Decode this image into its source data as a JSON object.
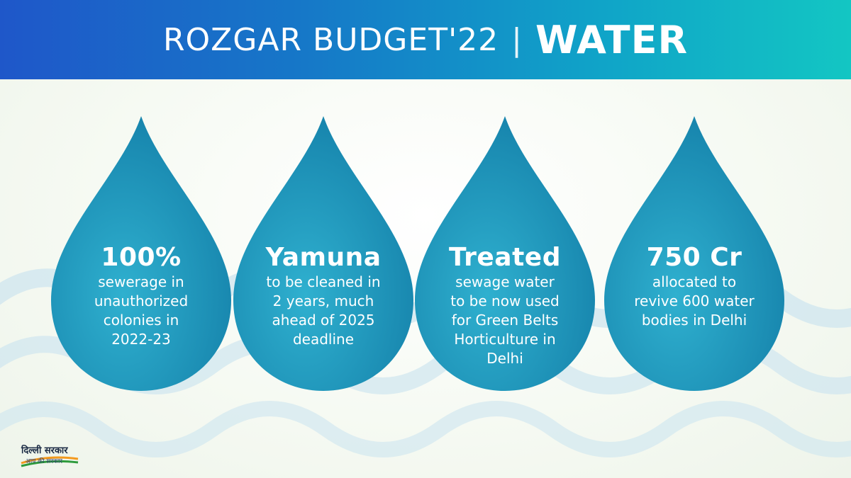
{
  "header": {
    "title_left": "ROZGAR BUDGET'22",
    "separator": "|",
    "title_right": "WATER",
    "gradient_start": "#1f57c9",
    "gradient_end": "#13c6c3"
  },
  "drops": [
    {
      "headline": "100%",
      "lines": [
        "sewerage in",
        "unauthorized",
        "colonies in",
        "2022-23"
      ]
    },
    {
      "headline": "Yamuna",
      "lines": [
        "to be cleaned in",
        "2 years, much",
        "ahead of 2025",
        "deadline"
      ]
    },
    {
      "headline": "Treated",
      "lines": [
        "sewage water",
        "to be now used",
        "for Green Belts",
        "Horticulture in",
        "Delhi"
      ]
    },
    {
      "headline": "750 Cr",
      "lines": [
        "allocated to",
        "revive 600 water",
        "bodies in Delhi"
      ]
    }
  ],
  "colors": {
    "drop_light": "#2aa6c8",
    "drop_dark": "#1380a8",
    "wave": "#cfe6ef",
    "text": "#ffffff"
  },
  "logo": {
    "name": "दिल्ली सरकार",
    "tagline": "आप की सरकार"
  }
}
